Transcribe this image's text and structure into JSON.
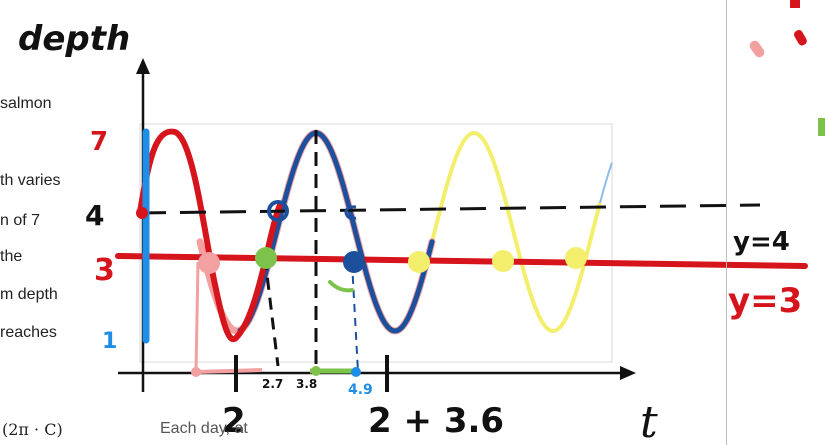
{
  "prose_lines": [
    "salmon",
    "th varies",
    "n of 7",
    "the",
    "m depth",
    "reaches"
  ],
  "formula": "(2π ·  C)",
  "formula_tail": "Each day, at ",
  "handwriting": {
    "title": "depth",
    "y_ticks": [
      "7",
      "4",
      "3",
      "1"
    ],
    "x_labels_small": [
      "2.7",
      "3.8",
      "4.9"
    ],
    "x_labels_big": [
      "2",
      "2 + 3.6",
      "t"
    ],
    "eq_4": "y=4",
    "eq_3": "y=3"
  },
  "colors": {
    "red": "#d5141c",
    "dark_blue": "#1c4f9c",
    "light_blue": "#8fbde8",
    "pink": "#f2a0a0",
    "yellow": "#f3ee6b",
    "green": "#7cc24b",
    "azure": "#1e8ee6",
    "black": "#111111"
  }
}
